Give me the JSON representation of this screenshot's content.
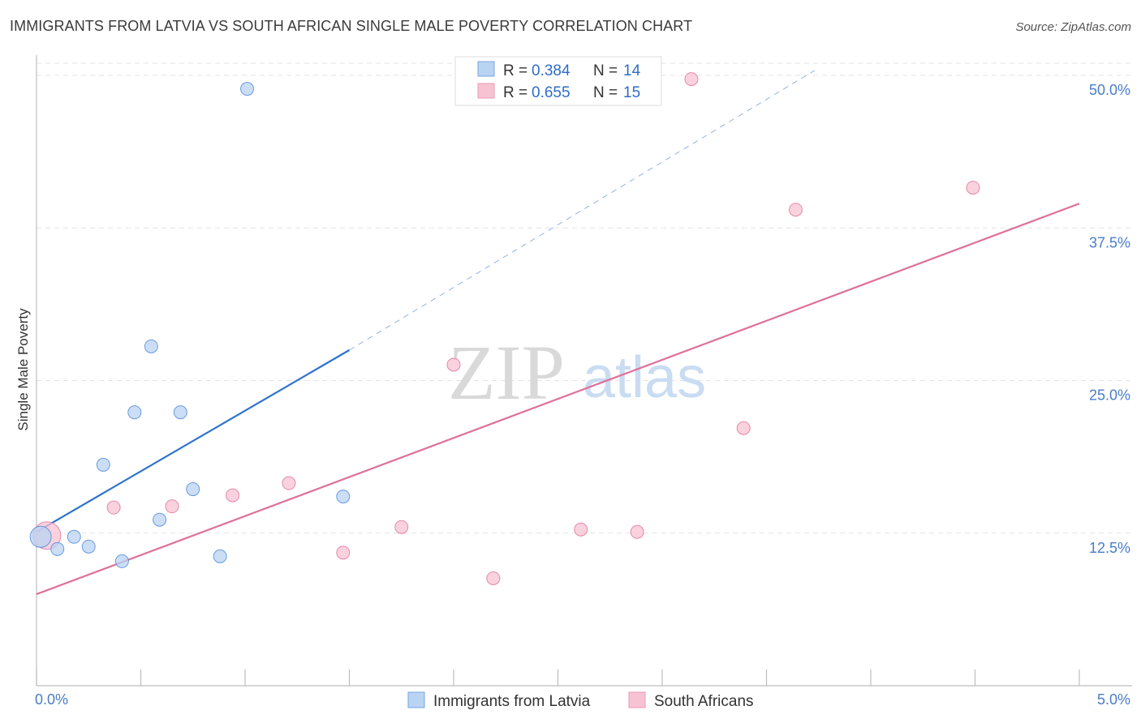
{
  "title": "IMMIGRANTS FROM LATVIA VS SOUTH AFRICAN SINGLE MALE POVERTY CORRELATION CHART",
  "source": "Source: ZipAtlas.com",
  "watermark": {
    "zip": "ZIP",
    "atlas": "atlas"
  },
  "chart_data": {
    "type": "scatter",
    "title": "IMMIGRANTS FROM LATVIA VS SOUTH AFRICAN SINGLE MALE POVERTY CORRELATION CHART",
    "xlabel": "",
    "ylabel": "Single Male Poverty",
    "xlim": [
      0,
      5
    ],
    "ylim": [
      0,
      51
    ],
    "x_ticks": [
      0,
      0.5,
      1,
      1.5,
      2,
      2.5,
      3,
      3.5,
      4,
      4.5,
      5
    ],
    "x_tick_labels": {
      "start": "0.0%",
      "end": "5.0%"
    },
    "y_ticks": [
      12.5,
      25,
      37.5,
      50
    ],
    "y_tick_labels": [
      "12.5%",
      "25.0%",
      "37.5%",
      "50.0%"
    ],
    "grid": true,
    "legend_position": "top-center",
    "series": [
      {
        "name": "Immigrants from Latvia",
        "color": "#4a86d8",
        "fill": "#b9d3f3",
        "r_label": "R = ",
        "r_value": "0.384",
        "n_label": "N = ",
        "n_value": "14",
        "points": [
          {
            "x": 0.02,
            "y": 12.2
          },
          {
            "x": 0.1,
            "y": 11.2
          },
          {
            "x": 0.18,
            "y": 12.2
          },
          {
            "x": 0.25,
            "y": 11.4
          },
          {
            "x": 0.32,
            "y": 18.1
          },
          {
            "x": 0.41,
            "y": 10.2
          },
          {
            "x": 0.47,
            "y": 22.4
          },
          {
            "x": 0.55,
            "y": 27.8
          },
          {
            "x": 0.59,
            "y": 13.6
          },
          {
            "x": 0.69,
            "y": 22.4
          },
          {
            "x": 0.75,
            "y": 16.1
          },
          {
            "x": 0.88,
            "y": 10.6
          },
          {
            "x": 1.01,
            "y": 48.9
          },
          {
            "x": 1.47,
            "y": 15.5
          }
        ],
        "trend": {
          "x0": 0.0,
          "y0": 12.6,
          "x1": 1.5,
          "y1": 27.5,
          "dash_to_x": 3.73,
          "dash_to_y": 50.4
        }
      },
      {
        "name": "South Africans",
        "color": "#e0709a",
        "fill": "#f7c3d3",
        "r_label": "R = ",
        "r_value": "0.655",
        "n_label": "N = ",
        "n_value": "15",
        "points": [
          {
            "x": 0.05,
            "y": 12.3
          },
          {
            "x": 0.37,
            "y": 14.6
          },
          {
            "x": 0.65,
            "y": 14.7
          },
          {
            "x": 0.94,
            "y": 15.6
          },
          {
            "x": 1.21,
            "y": 16.6
          },
          {
            "x": 1.47,
            "y": 10.9
          },
          {
            "x": 1.75,
            "y": 13.0
          },
          {
            "x": 2.0,
            "y": 26.3
          },
          {
            "x": 2.19,
            "y": 8.8
          },
          {
            "x": 2.61,
            "y": 12.8
          },
          {
            "x": 2.88,
            "y": 12.6
          },
          {
            "x": 3.14,
            "y": 49.7
          },
          {
            "x": 3.39,
            "y": 21.1
          },
          {
            "x": 3.64,
            "y": 39.0
          },
          {
            "x": 4.49,
            "y": 40.8
          }
        ],
        "trend": {
          "x0": 0.0,
          "y0": 7.5,
          "x1": 5.0,
          "y1": 39.5
        }
      }
    ]
  }
}
